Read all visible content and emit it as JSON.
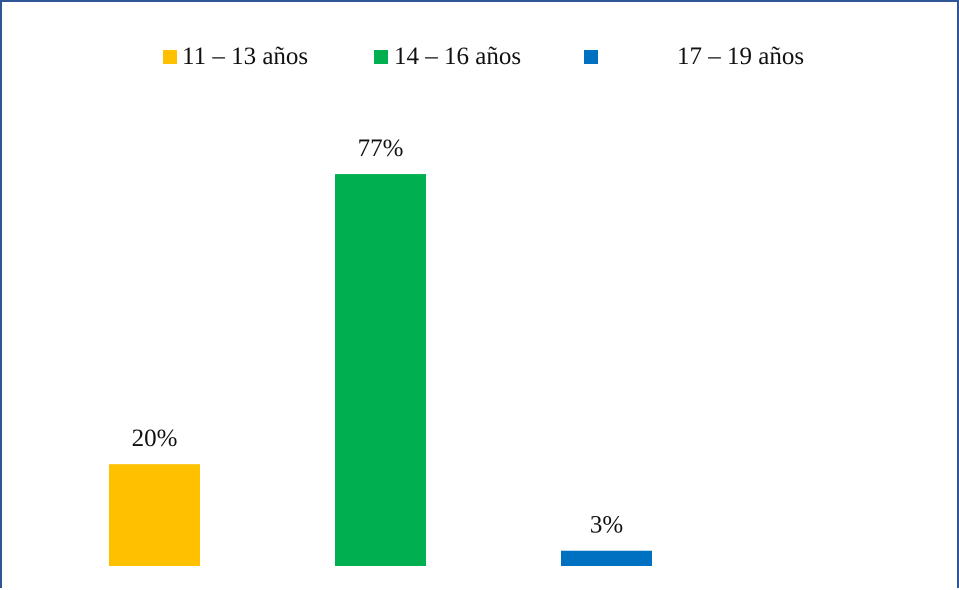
{
  "chart_data": {
    "type": "bar",
    "categories": [
      "11 – 13 años",
      "14 – 16 años",
      "17 – 19 años"
    ],
    "values": [
      20,
      77,
      3
    ],
    "data_labels": [
      "20%",
      "77%",
      "3%"
    ],
    "colors": [
      "#ffc000",
      "#00b050",
      "#0070c0"
    ],
    "ylim": [
      0,
      100
    ],
    "grid": false,
    "legend_position": "top",
    "title": "",
    "xlabel": "",
    "ylabel": ""
  },
  "legend": {
    "items": [
      {
        "label": "11 – 13 años",
        "color": "#ffc000"
      },
      {
        "label": "14 – 16 años",
        "color": "#00b050"
      },
      {
        "label": "17 – 19 años",
        "color": "#0070c0"
      }
    ]
  }
}
